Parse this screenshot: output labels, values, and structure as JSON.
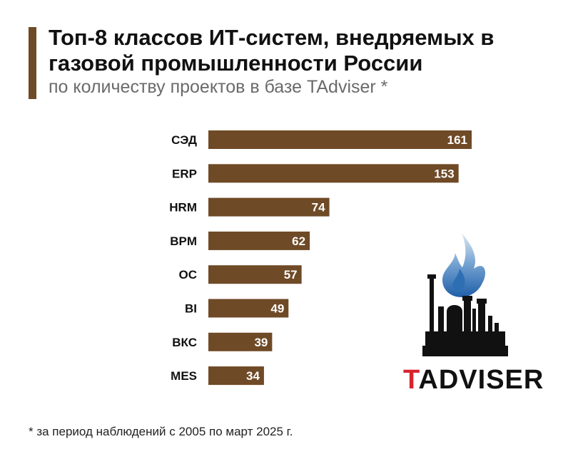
{
  "header": {
    "title": "Топ-8 классов ИТ-систем, внедряемых в газовой промышленности России",
    "subtitle": "по количеству проектов в базе TAdviser *"
  },
  "footnote": "* за период наблюдений с 2005 по март 2025 г.",
  "brand": {
    "first_letter": "T",
    "rest": "ADVISER"
  },
  "colors": {
    "bar": "#6f4a26",
    "accent": "#6f4a26",
    "brand_red": "#d9232e",
    "flame": "#2e6fb4"
  },
  "logo_icon": "gas-plant-flame-icon",
  "chart_data": {
    "type": "bar",
    "orientation": "horizontal",
    "categories": [
      "СЭД",
      "ERP",
      "HRM",
      "BPM",
      "ОС",
      "BI",
      "ВКС",
      "MES"
    ],
    "values": [
      161,
      153,
      74,
      62,
      57,
      49,
      39,
      34
    ],
    "title": "Топ-8 классов ИТ-систем, внедряемых в газовой промышленности России",
    "subtitle": "по количеству проектов в базе TAdviser *",
    "xlim": [
      0,
      161
    ],
    "grid": false,
    "data_labels": true
  }
}
